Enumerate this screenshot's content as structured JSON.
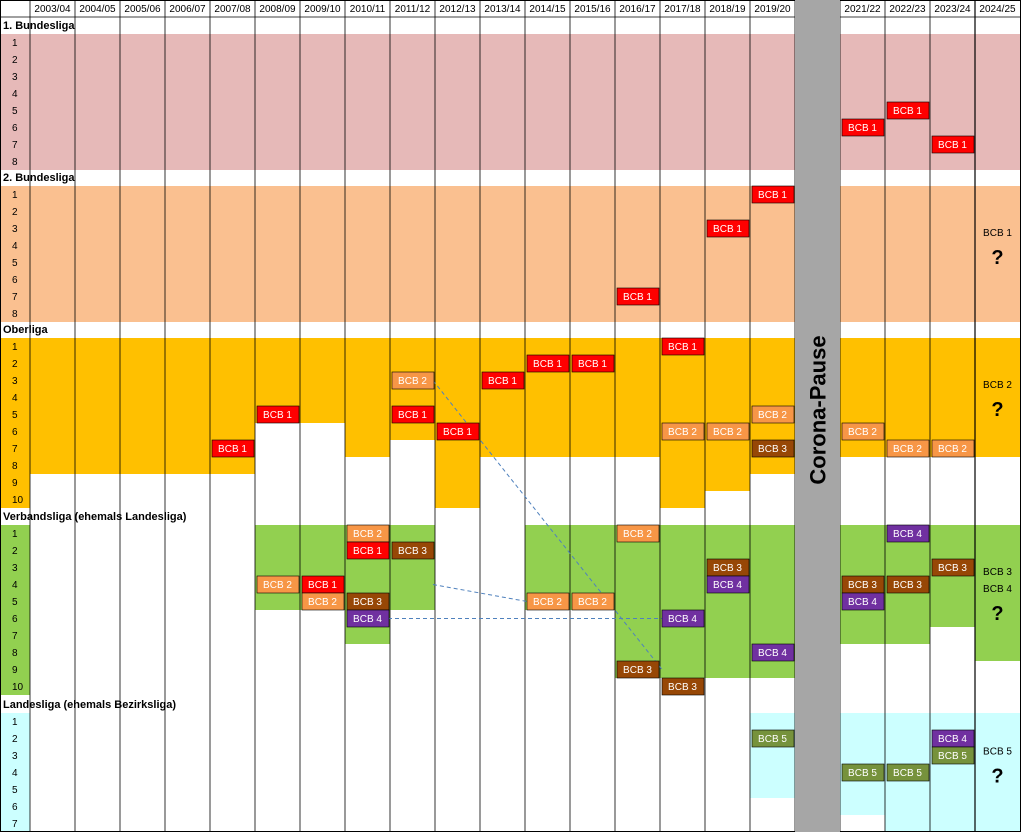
{
  "seasons": [
    "2003/04",
    "2004/05",
    "2005/06",
    "2006/07",
    "2007/08",
    "2008/09",
    "2009/10",
    "2010/11",
    "2011/12",
    "2012/13",
    "2013/14",
    "2014/15",
    "2015/16",
    "2016/17",
    "2017/18",
    "2018/19",
    "2019/20",
    "",
    "2021/22",
    "2022/23",
    "2023/24",
    "2024/25"
  ],
  "pause_label": "Corona-Pause",
  "future_marker": "?",
  "colors": {
    "grid_line": "#000000",
    "pause_bar": "#a6a6a6",
    "dashed_line": "#4f81bd",
    "bcb1": "#ff0000",
    "bcb2": "#f79646",
    "bcb3": "#974706",
    "bcb4": "#7030a0",
    "bcb5": "#76923c"
  },
  "leagues": [
    {
      "title": "1. Bundesliga",
      "places": 8,
      "color": "#e6b9b8",
      "fill": [
        8,
        8,
        8,
        8,
        8,
        8,
        8,
        8,
        8,
        8,
        8,
        8,
        8,
        8,
        8,
        8,
        8,
        0,
        8,
        8,
        8,
        8
      ],
      "entries": [
        {
          "season": 18,
          "place": 6,
          "team": "BCB 1"
        },
        {
          "season": 19,
          "place": 5,
          "team": "BCB 1"
        },
        {
          "season": 20,
          "place": 7,
          "team": "BCB 1"
        }
      ],
      "outlook": null
    },
    {
      "title": "2. Bundesliga",
      "places": 8,
      "color": "#fac090",
      "fill": [
        8,
        8,
        8,
        8,
        8,
        8,
        8,
        8,
        8,
        8,
        8,
        8,
        8,
        8,
        8,
        8,
        8,
        0,
        8,
        8,
        8,
        8
      ],
      "entries": [
        {
          "season": 13,
          "place": 7,
          "team": "BCB 1"
        },
        {
          "season": 15,
          "place": 3,
          "team": "BCB 1"
        },
        {
          "season": 16,
          "place": 1,
          "team": "BCB 1"
        }
      ],
      "outlook": {
        "labels": [
          "BCB 1"
        ]
      }
    },
    {
      "title": "Oberliga",
      "places": 10,
      "color": "#ffc000",
      "fill": [
        8,
        8,
        8,
        8,
        8,
        5,
        5,
        7,
        6,
        10,
        7,
        7,
        7,
        7,
        10,
        9,
        8,
        0,
        7,
        7,
        7,
        7
      ],
      "entries": [
        {
          "season": 4,
          "place": 7,
          "team": "BCB 1"
        },
        {
          "season": 5,
          "place": 5,
          "team": "BCB 1"
        },
        {
          "season": 8,
          "place": 3,
          "team": "BCB 2"
        },
        {
          "season": 8,
          "place": 5,
          "team": "BCB 1"
        },
        {
          "season": 9,
          "place": 6,
          "team": "BCB 1"
        },
        {
          "season": 10,
          "place": 3,
          "team": "BCB 1"
        },
        {
          "season": 11,
          "place": 2,
          "team": "BCB 1"
        },
        {
          "season": 12,
          "place": 2,
          "team": "BCB 1"
        },
        {
          "season": 14,
          "place": 1,
          "team": "BCB 1"
        },
        {
          "season": 14,
          "place": 6,
          "team": "BCB 2"
        },
        {
          "season": 15,
          "place": 6,
          "team": "BCB 2"
        },
        {
          "season": 16,
          "place": 5,
          "team": "BCB 2"
        },
        {
          "season": 16,
          "place": 7,
          "team": "BCB 3"
        },
        {
          "season": 18,
          "place": 6,
          "team": "BCB 2"
        },
        {
          "season": 19,
          "place": 7,
          "team": "BCB 2"
        },
        {
          "season": 20,
          "place": 7,
          "team": "BCB 2"
        }
      ],
      "outlook": {
        "labels": [
          "BCB 2"
        ]
      }
    },
    {
      "title": "Verbandsliga (ehemals Landesliga)",
      "places": 10,
      "color": "#92d050",
      "fill": [
        0,
        0,
        0,
        0,
        0,
        5,
        5,
        7,
        5,
        0,
        0,
        5,
        5,
        9,
        9,
        9,
        9,
        0,
        7,
        7,
        6,
        8
      ],
      "entries": [
        {
          "season": 5,
          "place": 4,
          "team": "BCB 2"
        },
        {
          "season": 6,
          "place": 4,
          "team": "BCB 1"
        },
        {
          "season": 6,
          "place": 5,
          "team": "BCB 2"
        },
        {
          "season": 7,
          "place": 1,
          "team": "BCB 2"
        },
        {
          "season": 7,
          "place": 2,
          "team": "BCB 1"
        },
        {
          "season": 7,
          "place": 5,
          "team": "BCB 3"
        },
        {
          "season": 7,
          "place": 6,
          "team": "BCB 4"
        },
        {
          "season": 8,
          "place": 2,
          "team": "BCB 3"
        },
        {
          "season": 11,
          "place": 5,
          "team": "BCB 2"
        },
        {
          "season": 12,
          "place": 5,
          "team": "BCB 2"
        },
        {
          "season": 13,
          "place": 1,
          "team": "BCB 2"
        },
        {
          "season": 13,
          "place": 9,
          "team": "BCB 3"
        },
        {
          "season": 14,
          "place": 6,
          "team": "BCB 4"
        },
        {
          "season": 14,
          "place": 10,
          "team": "BCB 3"
        },
        {
          "season": 15,
          "place": 3,
          "team": "BCB 3"
        },
        {
          "season": 15,
          "place": 4,
          "team": "BCB 4"
        },
        {
          "season": 16,
          "place": 8,
          "team": "BCB 4"
        },
        {
          "season": 18,
          "place": 4,
          "team": "BCB 3"
        },
        {
          "season": 18,
          "place": 5,
          "team": "BCB 4"
        },
        {
          "season": 19,
          "place": 1,
          "team": "BCB 4"
        },
        {
          "season": 19,
          "place": 4,
          "team": "BCB 3"
        },
        {
          "season": 20,
          "place": 3,
          "team": "BCB 3"
        }
      ],
      "outlook": {
        "labels": [
          "BCB 3",
          "BCB 4"
        ]
      }
    },
    {
      "title": "Landesliga (ehemals Bezirksliga)",
      "places": 7,
      "color": "#ccffff",
      "fill": [
        0,
        0,
        0,
        0,
        0,
        0,
        0,
        0,
        0,
        0,
        0,
        0,
        0,
        0,
        0,
        0,
        5,
        0,
        6,
        7,
        7,
        7
      ],
      "entries": [
        {
          "season": 16,
          "place": 2,
          "team": "BCB 5"
        },
        {
          "season": 18,
          "place": 4,
          "team": "BCB 5"
        },
        {
          "season": 19,
          "place": 4,
          "team": "BCB 5"
        },
        {
          "season": 20,
          "place": 2,
          "team": "BCB 4"
        },
        {
          "season": 20,
          "place": 3,
          "team": "BCB 5"
        }
      ],
      "outlook": {
        "labels": [
          "BCB 5"
        ]
      }
    }
  ],
  "dashed_connectors": [
    {
      "from": {
        "league": 2,
        "season": 8,
        "place": 3
      },
      "to": {
        "league": 3,
        "season": 14,
        "place": 9
      }
    },
    {
      "from": {
        "league": 3,
        "season": 8,
        "place": 4
      },
      "to": {
        "league": 3,
        "season": 11,
        "place": 5
      }
    },
    {
      "from": {
        "league": 3,
        "season": 7,
        "place": 6
      },
      "to": {
        "league": 3,
        "season": 14,
        "place": 6
      }
    }
  ]
}
